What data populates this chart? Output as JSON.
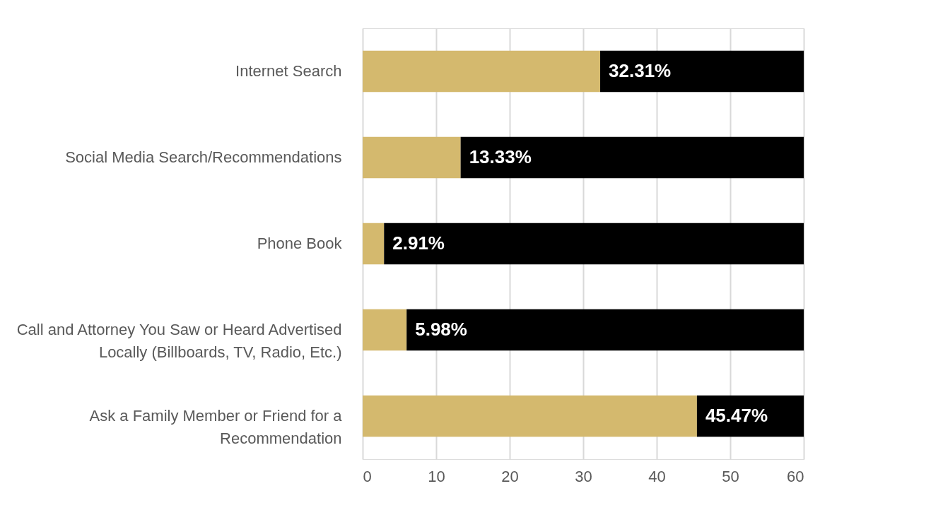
{
  "chart_data": {
    "type": "bar",
    "orientation": "horizontal",
    "stacked": true,
    "categories": [
      "Internet Search",
      "Social Media Search/Recommendations",
      "Phone Book",
      "Call and Attorney You Saw or Heard Advertised Locally (Billboards, TV, Radio, Etc.)",
      "Ask a Family Member or Friend for a Recommendation"
    ],
    "series": [
      {
        "color": "#d4b96e",
        "values": [
          32.31,
          13.33,
          2.91,
          5.98,
          45.47
        ],
        "value_labels": [
          "32.31%",
          "13.33%",
          "2.91%",
          "5.98%",
          "45.47%"
        ]
      },
      {
        "color": "#000000",
        "values": [
          27.69,
          46.67,
          57.09,
          54.02,
          14.53
        ]
      }
    ],
    "xlim": [
      0,
      60
    ],
    "xticks": [
      0,
      10,
      20,
      30,
      40,
      50,
      60
    ],
    "grid": "x",
    "legend": false
  }
}
